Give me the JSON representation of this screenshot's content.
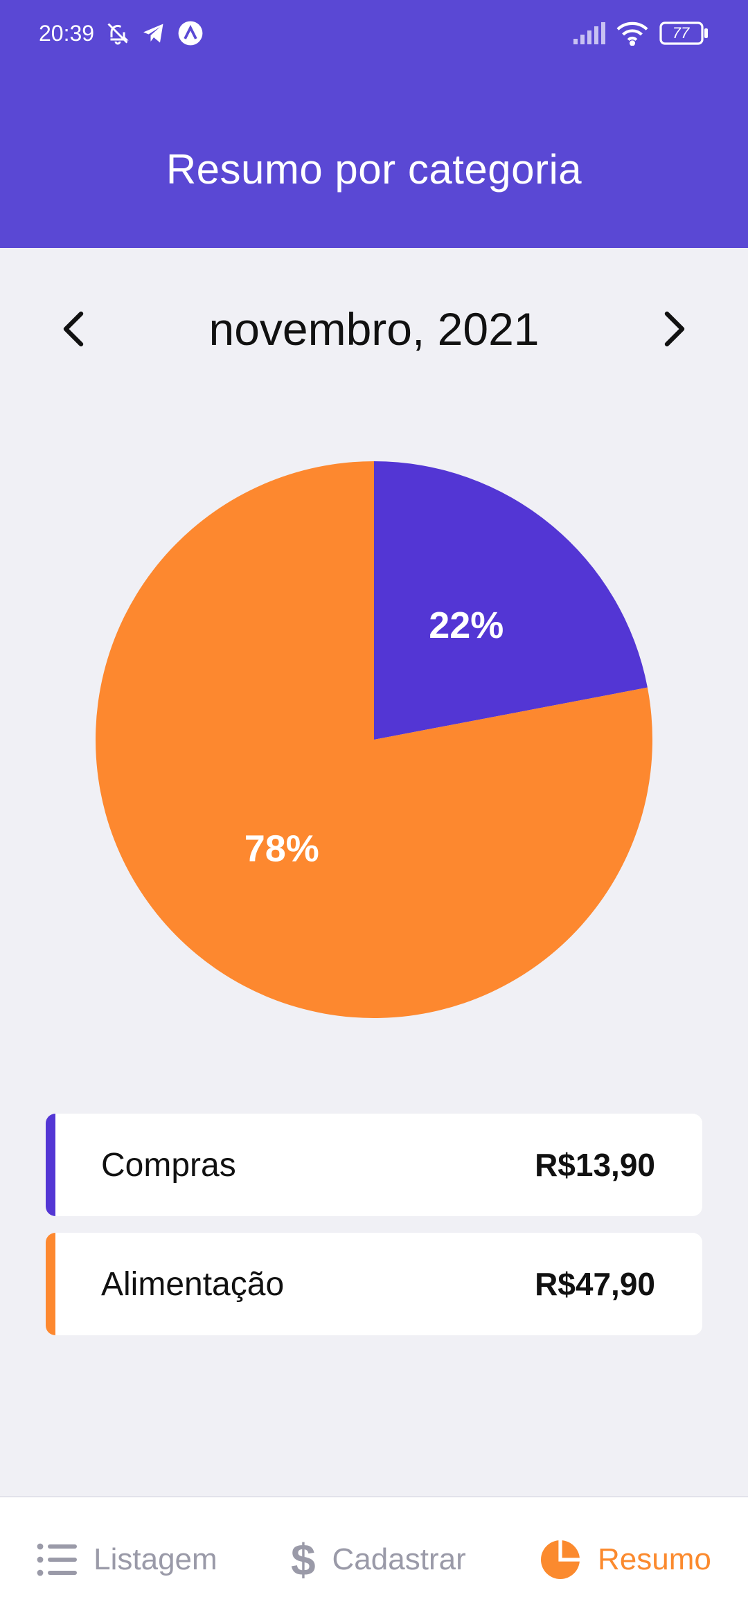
{
  "status_bar": {
    "time": "20:39",
    "battery": "77",
    "icons": [
      "bell-off-icon",
      "telegram-icon",
      "app-icon",
      "signal-icon",
      "wifi-icon",
      "battery-icon"
    ]
  },
  "header": {
    "title": "Resumo por categoria"
  },
  "month_selector": {
    "label": "novembro, 2021"
  },
  "chart_data": {
    "type": "pie",
    "title": "",
    "slices": [
      {
        "name": "Compras",
        "value": 22,
        "label": "22%",
        "color": "#5336d4"
      },
      {
        "name": "Alimentação",
        "value": 78,
        "label": "78%",
        "color": "#fd882f"
      }
    ]
  },
  "categories": [
    {
      "name": "Compras",
      "amount": "R$13,90",
      "color": "#5336d4"
    },
    {
      "name": "Alimentação",
      "amount": "R$47,90",
      "color": "#fd882f"
    }
  ],
  "bottom_nav": {
    "items": [
      {
        "label": "Listagem",
        "icon": "list-icon",
        "active": false
      },
      {
        "label": "Cadastrar",
        "icon": "dollar-icon",
        "active": false
      },
      {
        "label": "Resumo",
        "icon": "pie-chart-icon",
        "active": true
      }
    ]
  },
  "colors": {
    "header": "#5a48d4",
    "accent": "#fb8a2e",
    "background": "#f0f0f5"
  }
}
